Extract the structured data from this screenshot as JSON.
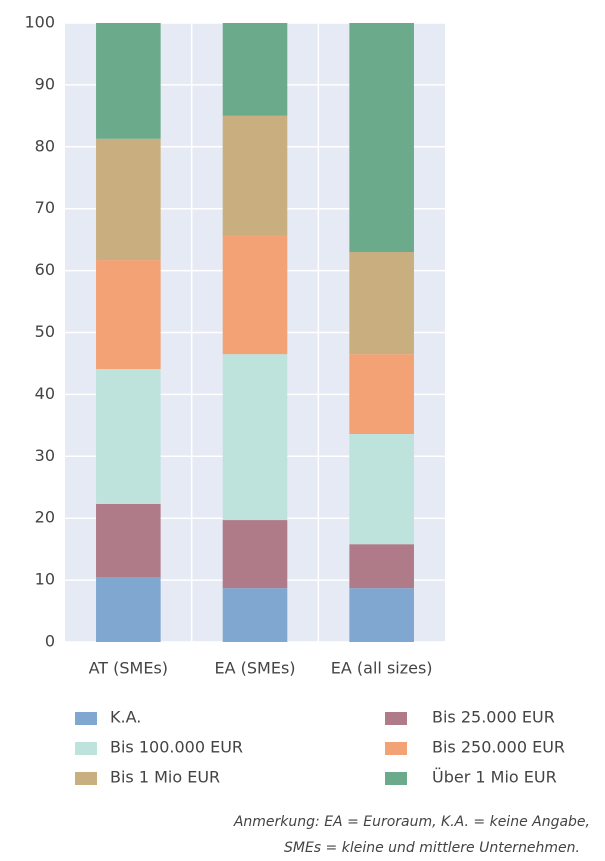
{
  "chart_data": {
    "type": "stacked_bar",
    "categories": [
      "AT (SMEs)",
      "EA (SMEs)",
      "EA (all sizes)"
    ],
    "series": [
      {
        "name": "K.A.",
        "color": "#80a7d0",
        "values": [
          10.5,
          8.7,
          8.7
        ]
      },
      {
        "name": "Bis 25.000 EUR",
        "color": "#b07b89",
        "values": [
          11.8,
          11.0,
          7.1
        ]
      },
      {
        "name": "Bis 100.000 EUR",
        "color": "#bee3dd",
        "values": [
          21.8,
          26.8,
          17.8
        ]
      },
      {
        "name": "Bis 250.000 EUR",
        "color": "#f3a276",
        "values": [
          17.6,
          19.1,
          12.9
        ]
      },
      {
        "name": "Bis 1 Mio EUR",
        "color": "#c9ae80",
        "values": [
          19.6,
          19.4,
          16.5
        ]
      },
      {
        "name": "Über 1 Mio EUR",
        "color": "#6bab8c",
        "values": [
          18.7,
          15.0,
          37.0
        ]
      }
    ],
    "ylim": [
      0,
      100
    ],
    "yticks": [
      0,
      10,
      20,
      30,
      40,
      50,
      60,
      70,
      80,
      90,
      100
    ],
    "grid": true,
    "note": [
      "Anmerkung: EA = Euroraum, K.A. = keine Angabe,",
      "SMEs = kleine und mittlere Unternehmen."
    ]
  }
}
